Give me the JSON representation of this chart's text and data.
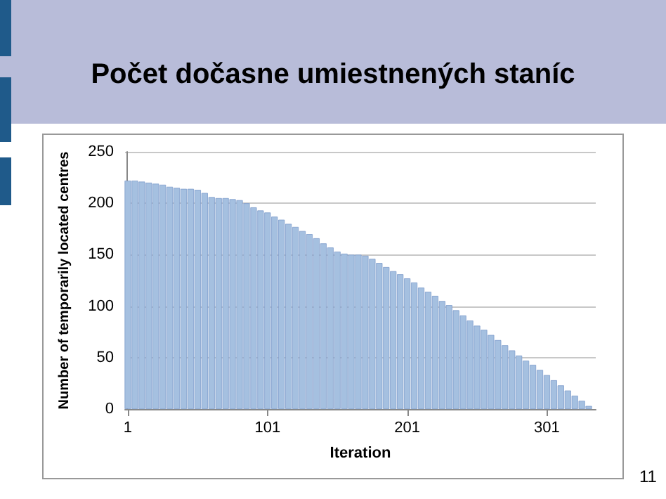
{
  "chart_data": {
    "type": "bar",
    "title": "Počet dočasne umiestnených staníc",
    "xlabel": "Iteration",
    "ylabel": "Number of temporarily located centres",
    "x": [
      1,
      6,
      11,
      16,
      21,
      26,
      31,
      36,
      41,
      46,
      51,
      56,
      61,
      66,
      71,
      76,
      81,
      86,
      91,
      96,
      101,
      106,
      111,
      116,
      121,
      126,
      131,
      136,
      141,
      146,
      151,
      156,
      161,
      166,
      171,
      176,
      181,
      186,
      191,
      196,
      201,
      206,
      211,
      216,
      221,
      226,
      231,
      236,
      241,
      246,
      251,
      256,
      261,
      266,
      271,
      276,
      281,
      286,
      291,
      296,
      301,
      306,
      311,
      316,
      321,
      326,
      331
    ],
    "values": [
      222,
      222,
      221,
      220,
      219,
      218,
      216,
      215,
      214,
      214,
      213,
      210,
      206,
      205,
      205,
      204,
      203,
      200,
      196,
      193,
      191,
      187,
      184,
      180,
      177,
      173,
      170,
      166,
      161,
      157,
      153,
      151,
      150,
      150,
      149,
      146,
      142,
      138,
      134,
      131,
      127,
      123,
      118,
      114,
      110,
      105,
      101,
      96,
      91,
      86,
      81,
      77,
      72,
      67,
      62,
      57,
      52,
      47,
      43,
      38,
      33,
      28,
      23,
      18,
      13,
      8,
      3
    ],
    "color": "#a5c0e0",
    "xlim": [
      -1,
      336
    ],
    "xticks": [
      1,
      101,
      201,
      301
    ],
    "ylim": [
      0,
      250
    ],
    "yticks": [
      0,
      50,
      100,
      150,
      200,
      250
    ],
    "grid": "y",
    "annotations": [
      "11"
    ]
  }
}
